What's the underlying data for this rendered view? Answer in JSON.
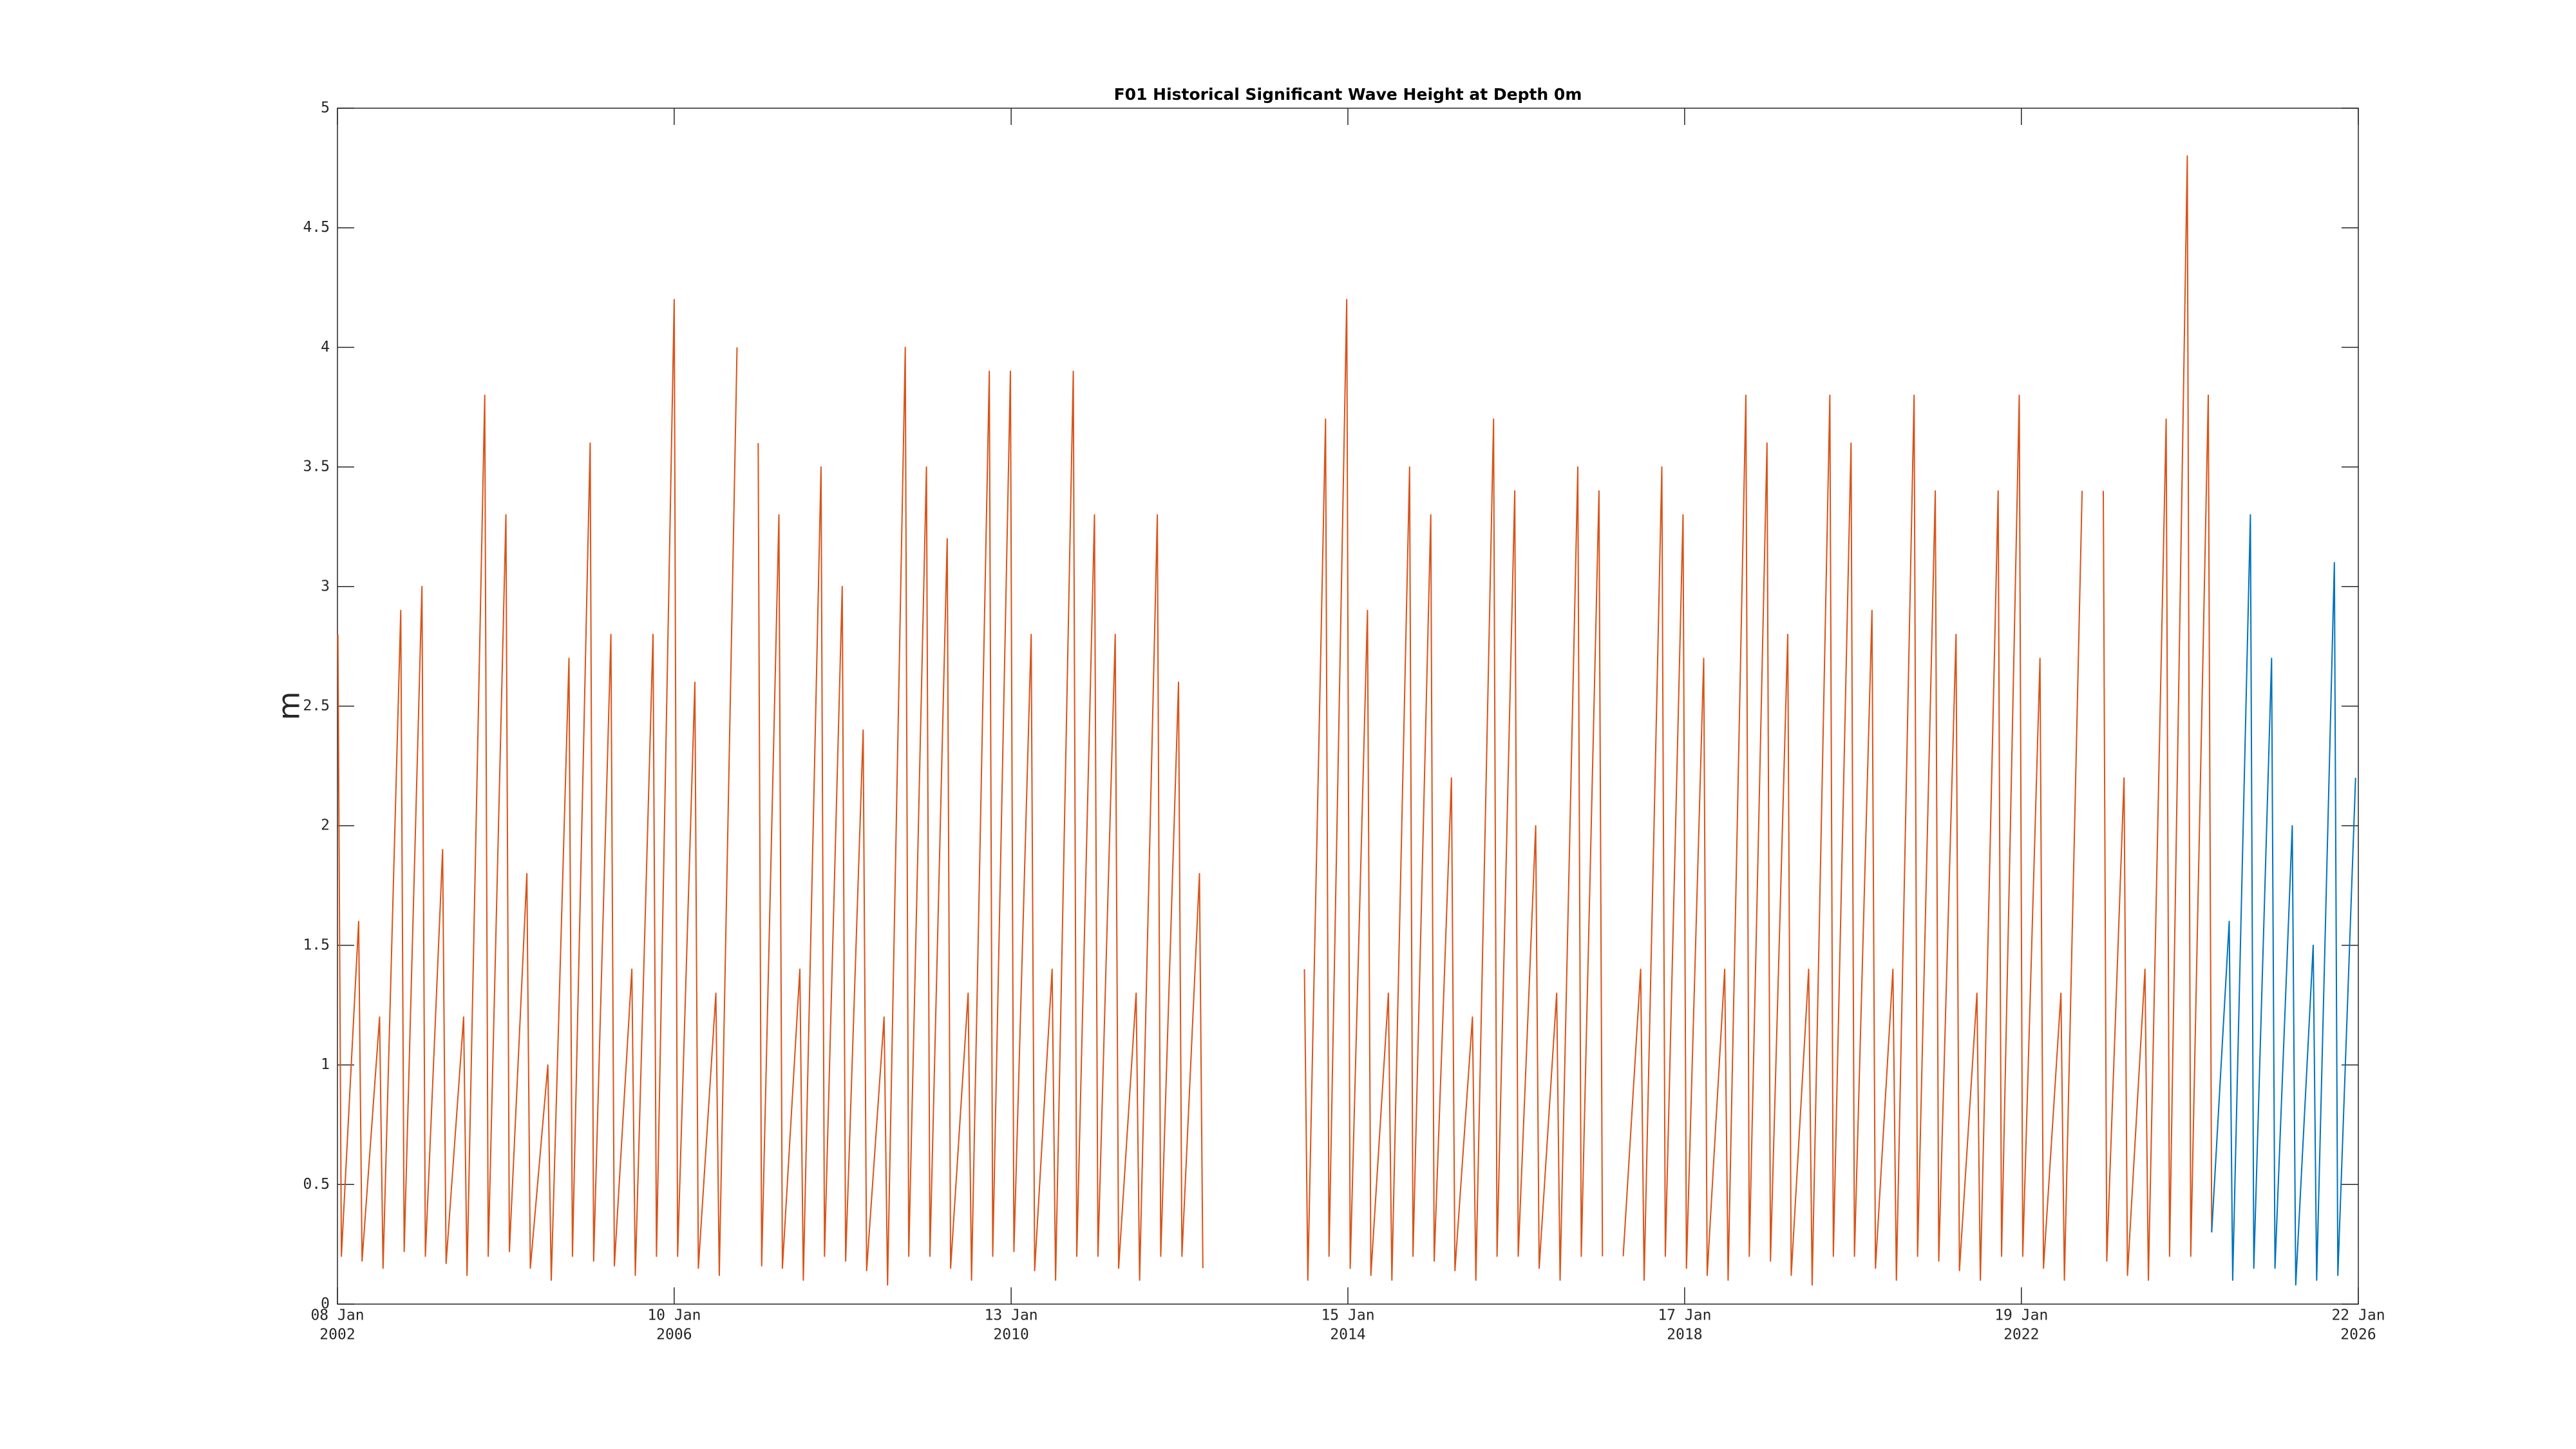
{
  "chart_data": {
    "type": "line",
    "title": "F01 Historical Significant Wave Height at Depth 0m",
    "ylabel": "m",
    "xlim": [
      "2002-01-08",
      "2026-01-22"
    ],
    "xticks": [
      {
        "value": "2002-01-08",
        "label": [
          "08 Jan",
          "2002"
        ]
      },
      {
        "value": "2006-01-10",
        "label": [
          "10 Jan",
          "2006"
        ]
      },
      {
        "value": "2010-01-13",
        "label": [
          "13 Jan",
          "2010"
        ]
      },
      {
        "value": "2014-01-15",
        "label": [
          "15 Jan",
          "2014"
        ]
      },
      {
        "value": "2018-01-17",
        "label": [
          "17 Jan",
          "2018"
        ]
      },
      {
        "value": "2022-01-19",
        "label": [
          "19 Jan",
          "2022"
        ]
      },
      {
        "value": "2026-01-22",
        "label": [
          "22 Jan",
          "2026"
        ]
      }
    ],
    "ylim": [
      0,
      5
    ],
    "yticks": [
      0,
      0.5,
      1,
      1.5,
      2,
      2.5,
      3,
      3.5,
      4,
      4.5,
      5
    ],
    "grid": false,
    "series": [
      {
        "color": "#d95319",
        "x": [
          "2002-01-10",
          "2002-01-25",
          "2002-04-10",
          "2002-04-25",
          "2002-07-10",
          "2002-07-25",
          "2002-10-10",
          "2002-10-25",
          "2003-01-10",
          "2003-01-25",
          "2003-04-10",
          "2003-04-25",
          "2003-07-10",
          "2003-07-25",
          "2003-10-10",
          "2003-10-25",
          "2004-01-10",
          "2004-01-25",
          "2004-04-10",
          "2004-04-25",
          "2004-07-10",
          "2004-07-25",
          "2004-10-10",
          "2004-10-25",
          "2005-01-10",
          "2005-01-25",
          "2005-04-10",
          "2005-04-25",
          "2005-07-10",
          "2005-07-25",
          "2005-10-10",
          "2005-10-25",
          "2006-01-10",
          "2006-01-25",
          "2006-04-10",
          "2006-04-25",
          "2006-07-10",
          "2006-07-25",
          "2006-10-10",
          "2006-10-25",
          "2007-01-10",
          "2007-01-25",
          "2007-04-10",
          "2007-04-25",
          "2007-07-10",
          "2007-07-25",
          "2007-10-10",
          "2007-10-25",
          "2008-01-10",
          "2008-01-25",
          "2008-04-10",
          "2008-04-25",
          "2008-07-10",
          "2008-07-25",
          "2008-10-10",
          "2008-10-25",
          "2009-01-10",
          "2009-01-25",
          "2009-04-10",
          "2009-04-25",
          "2009-07-10",
          "2009-07-25",
          "2009-10-10",
          "2009-10-25",
          "2010-01-10",
          "2010-01-25",
          "2010-04-10",
          "2010-04-25",
          "2010-07-10",
          "2010-07-25",
          "2010-10-10",
          "2010-10-25",
          "2011-01-10",
          "2011-01-25",
          "2011-04-10",
          "2011-04-25",
          "2011-07-10",
          "2011-07-25",
          "2011-10-10",
          "2011-10-25",
          "2012-01-10",
          "2012-01-25",
          "2012-04-10",
          "2012-04-25",
          "2012-07-10",
          "2012-07-25",
          "2012-10-10",
          "2012-10-25",
          "2013-01-10",
          "2013-01-25",
          "2013-04-10",
          "2013-04-25",
          "2013-07-10",
          "2013-07-25",
          "2013-10-10",
          "2013-10-25",
          "2014-01-10",
          "2014-01-25",
          "2014-04-10",
          "2014-04-25",
          "2014-07-10",
          "2014-07-25",
          "2014-10-10",
          "2014-10-25",
          "2015-01-10",
          "2015-01-25",
          "2015-04-10",
          "2015-04-25",
          "2015-07-10",
          "2015-07-25",
          "2015-10-10",
          "2015-10-25",
          "2016-01-10",
          "2016-01-25",
          "2016-04-10",
          "2016-04-25",
          "2016-07-10",
          "2016-07-25",
          "2016-10-10",
          "2016-10-25",
          "2017-01-10",
          "2017-01-25",
          "2017-04-10",
          "2017-04-25",
          "2017-07-10",
          "2017-07-25",
          "2017-10-10",
          "2017-10-25",
          "2018-01-10",
          "2018-01-25",
          "2018-04-10",
          "2018-04-25",
          "2018-07-10",
          "2018-07-25",
          "2018-10-10",
          "2018-10-25",
          "2019-01-10",
          "2019-01-25",
          "2019-04-10",
          "2019-04-25",
          "2019-07-10",
          "2019-07-25",
          "2019-10-10",
          "2019-10-25",
          "2020-01-10",
          "2020-01-25",
          "2020-04-10",
          "2020-04-25",
          "2020-07-10",
          "2020-07-25",
          "2020-10-10",
          "2020-10-25",
          "2021-01-10",
          "2021-01-25",
          "2021-04-10",
          "2021-04-25",
          "2021-07-10",
          "2021-07-25",
          "2021-10-10",
          "2021-10-25",
          "2022-01-10",
          "2022-01-25",
          "2022-04-10",
          "2022-04-25",
          "2022-07-10",
          "2022-07-25",
          "2022-10-10",
          "2022-10-25",
          "2023-01-10",
          "2023-01-25",
          "2023-04-10",
          "2023-04-25",
          "2023-07-10",
          "2023-07-25",
          "2023-10-10",
          "2023-10-25",
          "2024-01-10",
          "2024-01-25",
          "2024-04-10",
          "2024-04-25"
        ],
        "values": [
          2.8,
          0.2,
          1.6,
          0.18,
          1.2,
          0.15,
          2.9,
          0.22,
          3.0,
          0.2,
          1.9,
          0.17,
          1.2,
          0.12,
          3.8,
          0.2,
          3.3,
          0.22,
          1.8,
          0.15,
          1.0,
          0.1,
          2.7,
          0.2,
          3.6,
          0.18,
          2.8,
          0.16,
          1.4,
          0.12,
          2.8,
          0.2,
          4.2,
          0.2,
          2.6,
          0.15,
          1.3,
          0.12,
          4.0,
          null,
          3.6,
          0.16,
          3.3,
          0.15,
          1.4,
          0.1,
          3.5,
          0.2,
          3.0,
          0.18,
          2.4,
          0.14,
          1.2,
          0.08,
          4.0,
          0.2,
          3.5,
          0.2,
          3.2,
          0.15,
          1.3,
          0.1,
          3.9,
          0.2,
          3.9,
          0.22,
          2.8,
          0.14,
          1.4,
          0.1,
          3.9,
          0.2,
          3.3,
          0.2,
          2.8,
          0.15,
          1.3,
          0.1,
          3.3,
          0.2,
          2.6,
          0.2,
          1.8,
          0.15,
          null,
          null,
          null,
          null,
          null,
          null,
          null,
          null,
          1.4,
          0.1,
          3.7,
          0.2,
          4.2,
          0.15,
          2.9,
          0.12,
          1.3,
          0.1,
          3.5,
          0.2,
          3.3,
          0.18,
          2.2,
          0.14,
          1.2,
          0.1,
          3.7,
          0.2,
          3.4,
          0.2,
          2.0,
          0.15,
          1.3,
          0.1,
          3.5,
          0.2,
          3.4,
          0.2,
          null,
          0.2,
          1.4,
          0.1,
          3.5,
          0.2,
          3.3,
          0.15,
          2.7,
          0.12,
          1.4,
          0.1,
          3.8,
          0.2,
          3.6,
          0.18,
          2.8,
          0.12,
          1.4,
          0.08,
          3.8,
          0.2,
          3.6,
          0.2,
          2.9,
          0.15,
          1.4,
          0.1,
          3.8,
          0.2,
          3.4,
          0.18,
          2.8,
          0.14,
          1.3,
          0.1,
          3.4,
          0.2,
          3.8,
          0.2,
          2.7,
          0.15,
          1.3,
          0.1,
          3.4,
          null,
          3.4,
          0.18,
          2.2,
          0.12,
          1.4,
          0.1,
          3.7,
          0.2,
          4.8,
          0.2,
          3.8,
          0.3
        ]
      },
      {
        "color": "#0072bd",
        "x": [
          "2024-04-25",
          "2024-07-10",
          "2024-07-25",
          "2024-10-10",
          "2024-10-25",
          "2025-01-10",
          "2025-01-25",
          "2025-04-10",
          "2025-04-25",
          "2025-07-10",
          "2025-07-25",
          "2025-10-10",
          "2025-10-25",
          "2026-01-10"
        ],
        "values": [
          0.3,
          1.6,
          0.1,
          3.3,
          0.15,
          2.7,
          0.15,
          2.0,
          0.08,
          1.5,
          0.1,
          3.1,
          0.12,
          2.2
        ]
      }
    ]
  }
}
